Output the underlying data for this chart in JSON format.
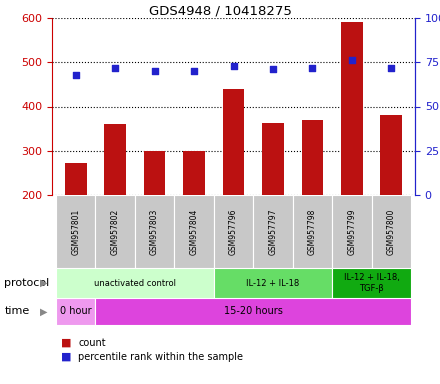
{
  "title": "GDS4948 / 10418275",
  "samples": [
    "GSM957801",
    "GSM957802",
    "GSM957803",
    "GSM957804",
    "GSM957796",
    "GSM957797",
    "GSM957798",
    "GSM957799",
    "GSM957800"
  ],
  "counts": [
    272,
    360,
    300,
    300,
    440,
    362,
    370,
    592,
    380
  ],
  "percentile_ranks": [
    68,
    72,
    70,
    70,
    73,
    71,
    72,
    76,
    72
  ],
  "bar_color": "#bb1111",
  "dot_color": "#2222cc",
  "ylim_left": [
    200,
    600
  ],
  "ylim_right": [
    0,
    100
  ],
  "yticks_left": [
    200,
    300,
    400,
    500,
    600
  ],
  "yticks_right": [
    0,
    25,
    50,
    75,
    100
  ],
  "protocol_groups": [
    {
      "label": "unactivated control",
      "start": 0,
      "end": 4,
      "color": "#ccffcc"
    },
    {
      "label": "IL-12 + IL-18",
      "start": 4,
      "end": 7,
      "color": "#66dd66"
    },
    {
      "label": "IL-12 + IL-18,\nTGF-β",
      "start": 7,
      "end": 9,
      "color": "#11aa11"
    }
  ],
  "time_groups": [
    {
      "label": "0 hour",
      "start": 0,
      "end": 1,
      "color": "#ee99ee"
    },
    {
      "label": "15-20 hours",
      "start": 1,
      "end": 9,
      "color": "#dd44dd"
    }
  ],
  "protocol_label": "protocol",
  "time_label": "time",
  "legend_count": "count",
  "legend_pct": "percentile rank within the sample",
  "left_axis_color": "#cc0000",
  "right_axis_color": "#2222cc",
  "background_color": "#ffffff"
}
